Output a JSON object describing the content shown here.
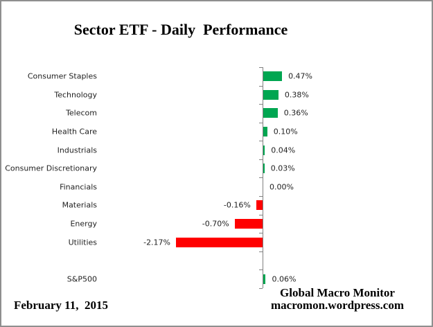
{
  "title": "Sector ETF - Daily  Performance",
  "date_label": "February 11,  2015",
  "footer": {
    "line1": "Global Macro Monitor",
    "line2": "macromon.wordpress.com"
  },
  "chart_data": {
    "type": "bar",
    "orientation": "horizontal",
    "title": "Sector ETF - Daily  Performance",
    "categories": [
      "Consumer Staples",
      "Technology",
      "Telecom",
      "Health Care",
      "Industrials",
      "Consumer Discretionary",
      "Financials",
      "Materials",
      "Energy",
      "Utilities",
      "S&P500"
    ],
    "values": [
      0.47,
      0.38,
      0.36,
      0.1,
      0.04,
      0.03,
      0.0,
      -0.16,
      -0.7,
      -2.17,
      0.06
    ],
    "value_labels": [
      "0.47%",
      "0.38%",
      "0.36%",
      "0.10%",
      "0.04%",
      "0.03%",
      "0.00%",
      "-0.16%",
      "-0.70%",
      "-2.17%",
      "0.06%"
    ],
    "gap_after_index": 9,
    "baseline": 0,
    "grid": "off",
    "legend": "none",
    "positive_color": "#00A651",
    "negative_color": "#FF0000",
    "axis_color": "#808080"
  }
}
